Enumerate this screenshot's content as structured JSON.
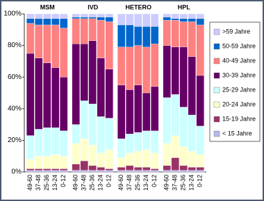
{
  "chart_data": {
    "type": "bar",
    "stacked": true,
    "groups": [
      "MSM",
      "IVD",
      "HETERO",
      "HPL"
    ],
    "categories": [
      "49-60",
      "37-48",
      "25-36",
      "13-24",
      "0-12"
    ],
    "ylim": [
      0,
      100
    ],
    "yticks": [
      {
        "value": 0,
        "label": "0%"
      },
      {
        "value": 20,
        "label": "20%"
      },
      {
        "value": 40,
        "label": "40%"
      },
      {
        "value": 60,
        "label": "60%"
      },
      {
        "value": 80,
        "label": "80%"
      },
      {
        "value": 100,
        "label": "100%"
      }
    ],
    "series": [
      {
        "name": "< 15 Jahre",
        "color": "#b8b8f0",
        "values": [
          [
            1,
            1,
            1,
            1,
            1
          ],
          [
            1,
            1,
            1,
            1,
            1
          ],
          [
            1,
            1,
            1,
            1,
            1
          ],
          [
            1,
            1,
            1,
            1,
            1
          ]
        ]
      },
      {
        "name": "15-19 Jahre",
        "color": "#993366",
        "values": [
          [
            1,
            1,
            1,
            1,
            1
          ],
          [
            4,
            6,
            3,
            2,
            1
          ],
          [
            2,
            3,
            2,
            2,
            1
          ],
          [
            3,
            8,
            3,
            2,
            2
          ]
        ]
      },
      {
        "name": "20-24 Jahre",
        "color": "#ffffcc",
        "values": [
          [
            6,
            8,
            8,
            9,
            8
          ],
          [
            13,
            14,
            13,
            9,
            12
          ],
          [
            6,
            8,
            10,
            11,
            10
          ],
          [
            14,
            14,
            12,
            10,
            8
          ]
        ]
      },
      {
        "name": "25-29 Jahre",
        "color": "#ccffff",
        "values": [
          [
            15,
            17,
            18,
            17,
            16
          ],
          [
            12,
            24,
            26,
            23,
            20
          ],
          [
            12,
            12,
            12,
            12,
            14
          ],
          [
            29,
            26,
            25,
            23,
            18
          ]
        ]
      },
      {
        "name": "30-39 Jahre",
        "color": "#660066",
        "values": [
          [
            52,
            45,
            41,
            38,
            34
          ],
          [
            51,
            36,
            40,
            37,
            31
          ],
          [
            34,
            28,
            30,
            24,
            28
          ],
          [
            33,
            30,
            38,
            37,
            32
          ]
        ]
      },
      {
        "name": "40-49 Jahre",
        "color": "#ff8080",
        "values": [
          [
            19,
            21,
            24,
            27,
            31
          ],
          [
            16,
            16,
            14,
            24,
            30
          ],
          [
            24,
            27,
            25,
            29,
            27
          ],
          [
            16,
            17,
            16,
            22,
            32
          ]
        ]
      },
      {
        "name": "50-59 Jahre",
        "color": "#0066cc",
        "values": [
          [
            3,
            4,
            4,
            4,
            6
          ],
          [
            1,
            1,
            1,
            2,
            3
          ],
          [
            14,
            14,
            12,
            13,
            11
          ],
          [
            2,
            1,
            2,
            2,
            4
          ]
        ]
      },
      {
        "name": ">59 Jahre",
        "color": "#ccccff",
        "values": [
          [
            3,
            3,
            3,
            3,
            3
          ],
          [
            2,
            2,
            2,
            2,
            2
          ],
          [
            7,
            7,
            8,
            8,
            8
          ],
          [
            2,
            3,
            3,
            3,
            3
          ]
        ]
      }
    ]
  }
}
